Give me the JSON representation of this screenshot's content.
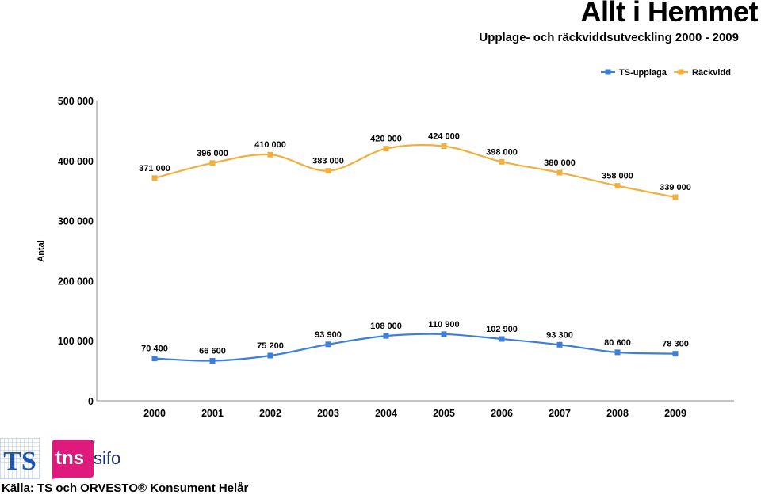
{
  "header": {
    "title": "Allt i Hemmet",
    "subtitle": "Upplage- och räckviddsutveckling 2000 - 2009"
  },
  "footer": {
    "source": "Källa: TS och ORVESTO® Konsument Helår",
    "logos": [
      {
        "name": "ts-logo",
        "text": "TS"
      },
      {
        "name": "tns-sifo-logo",
        "text": "tns sifo"
      }
    ]
  },
  "chart_data": {
    "type": "line",
    "title": "",
    "xlabel": "",
    "ylabel": "Antal",
    "categories": [
      "2000",
      "2001",
      "2002",
      "2003",
      "2004",
      "2005",
      "2006",
      "2007",
      "2008",
      "2009"
    ],
    "ylim": [
      0,
      500000
    ],
    "yticks": [
      0,
      100000,
      200000,
      300000,
      400000,
      500000
    ],
    "ytick_labels": [
      "0",
      "100 000",
      "200 000",
      "300 000",
      "400 000",
      "500 000"
    ],
    "grid": false,
    "legend_position": "top-right",
    "series": [
      {
        "name": "TS-upplaga",
        "color": "#3b7fd9",
        "values": [
          70400,
          66600,
          75200,
          93900,
          108000,
          110900,
          102900,
          93300,
          80600,
          78300
        ],
        "labels": [
          "70 400",
          "66 600",
          "75 200",
          "93 900",
          "108 000",
          "110 900",
          "102 900",
          "93 300",
          "80 600",
          "78 300"
        ]
      },
      {
        "name": "Räckvidd",
        "color": "#f0b040",
        "values": [
          371000,
          396000,
          410000,
          383000,
          420000,
          424000,
          398000,
          380000,
          358000,
          339000
        ],
        "labels": [
          "371 000",
          "396 000",
          "410 000",
          "383 000",
          "420 000",
          "424 000",
          "398 000",
          "380 000",
          "358 000",
          "339 000"
        ]
      }
    ]
  }
}
